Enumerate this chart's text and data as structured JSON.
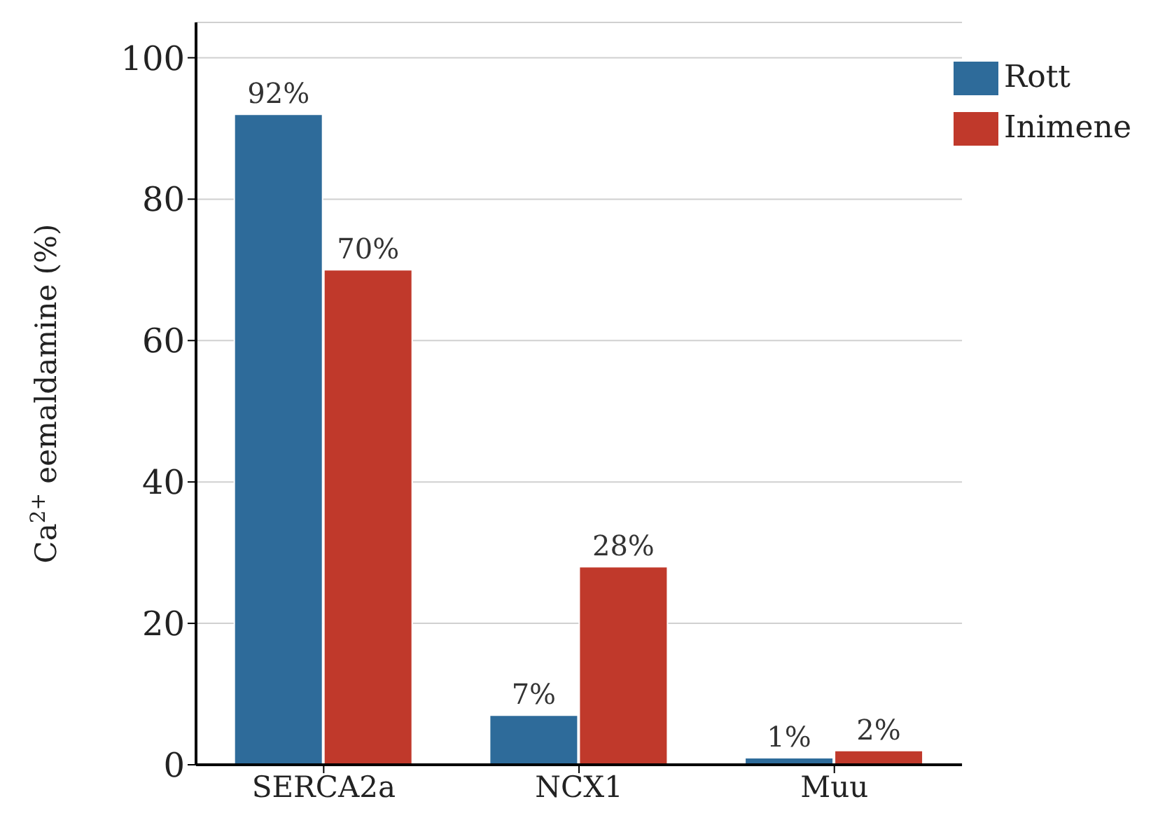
{
  "chart_data": {
    "type": "bar",
    "ylabel": "Ca$^{2+}$ eemaldamine (%)",
    "categories": [
      "SERCA2a",
      "NCX1",
      "Muu"
    ],
    "series": [
      {
        "name": "Rott",
        "color": "#2e6b9a",
        "values": [
          92,
          7,
          1
        ],
        "value_labels": [
          "92%",
          "7%",
          "1%"
        ]
      },
      {
        "name": "Inimene",
        "color": "#c0392b",
        "values": [
          70,
          28,
          2
        ],
        "value_labels": [
          "70%",
          "28%",
          "2%"
        ]
      }
    ],
    "ylim": [
      0,
      105
    ],
    "yticks": [
      0,
      20,
      40,
      60,
      80,
      100
    ],
    "grid": "y",
    "legend": "top right"
  }
}
